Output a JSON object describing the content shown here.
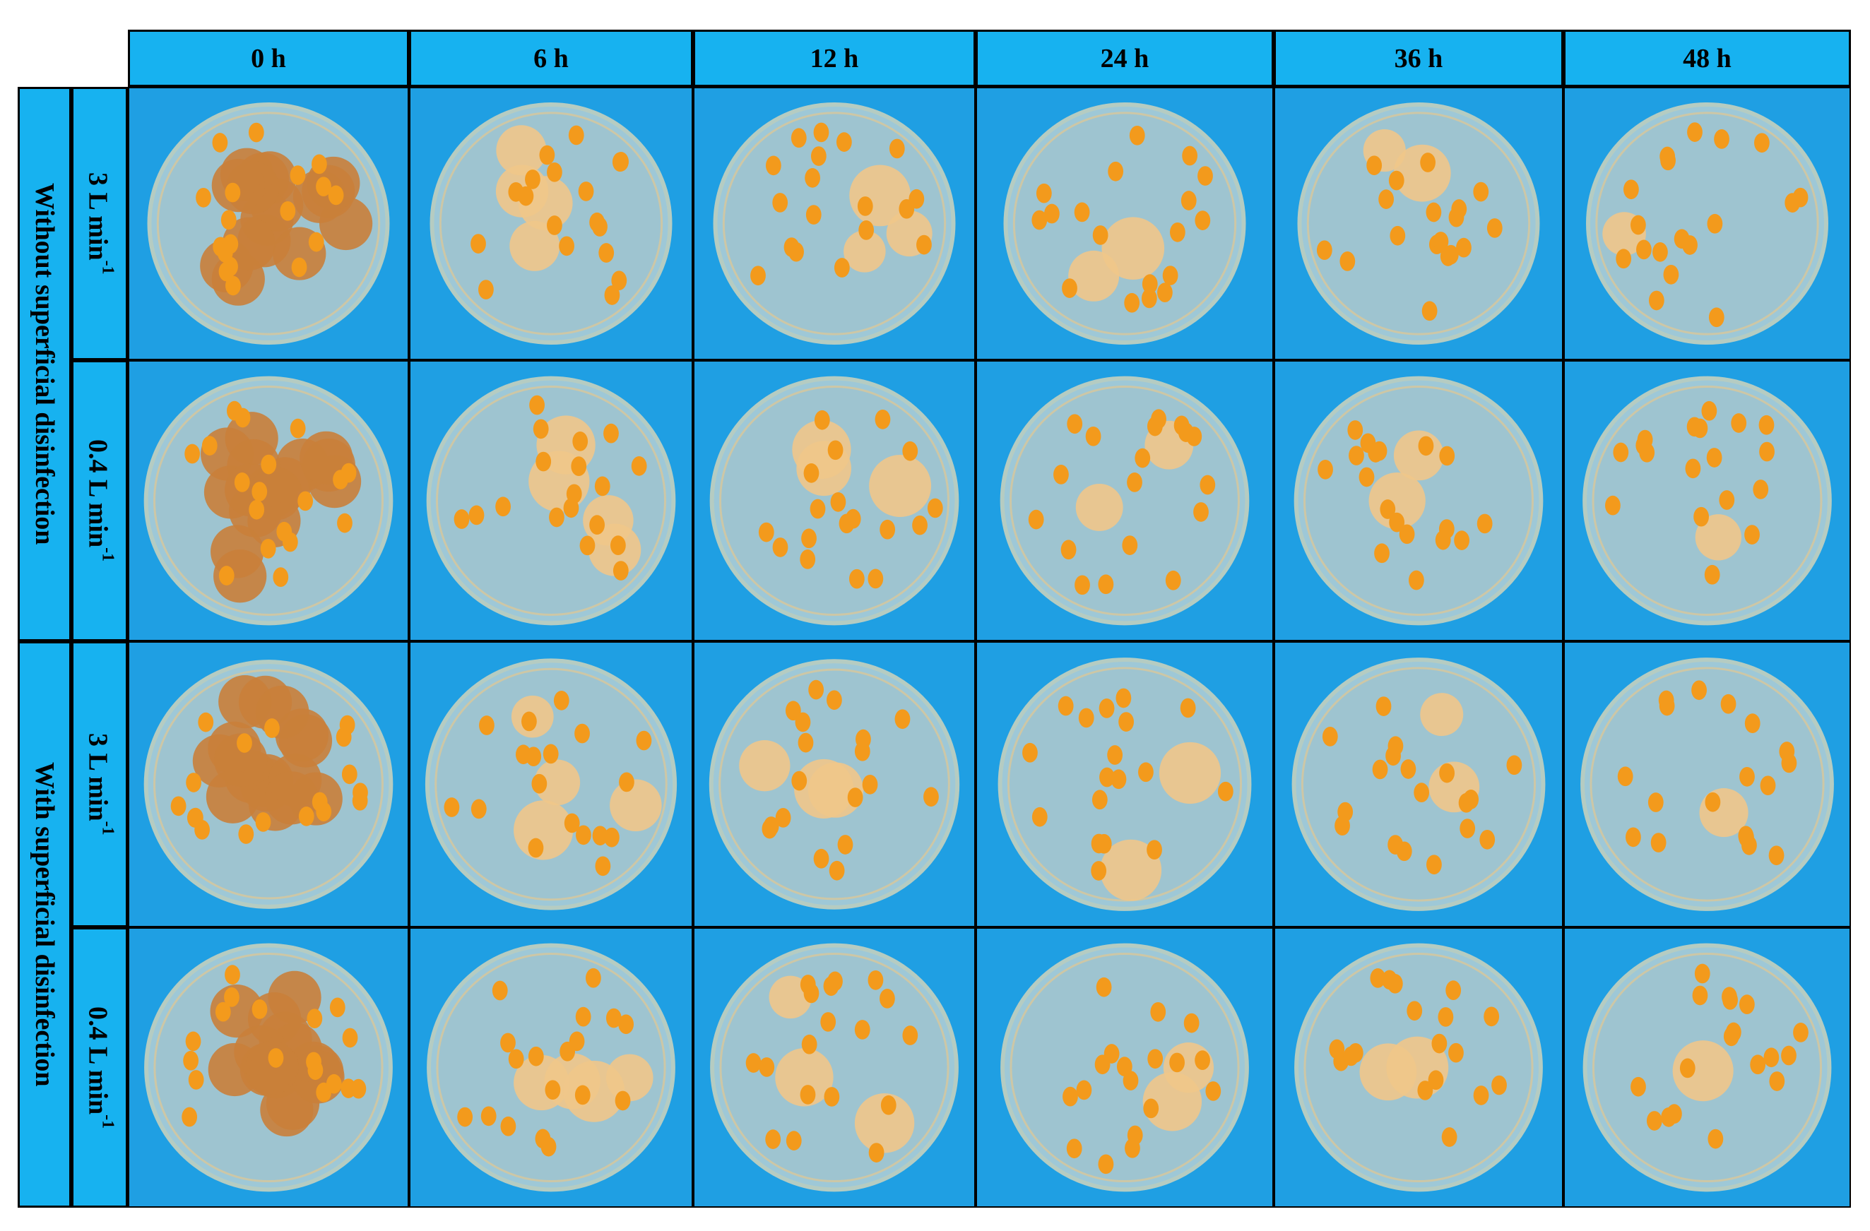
{
  "header": {
    "columns": [
      "0 h",
      "6 h",
      "12 h",
      "24 h",
      "36 h",
      "48 h"
    ]
  },
  "groups": [
    {
      "label": "Without superficial disinfection",
      "rows": [
        {
          "label": "3 L min",
          "sup": "-1"
        },
        {
          "label": "0.4 L min",
          "sup": "-1"
        }
      ]
    },
    {
      "label": "With superficial disinfection",
      "rows": [
        {
          "label": "3 L min",
          "sup": "-1"
        },
        {
          "label": "0.4 L min",
          "sup": "-1"
        }
      ]
    }
  ]
}
